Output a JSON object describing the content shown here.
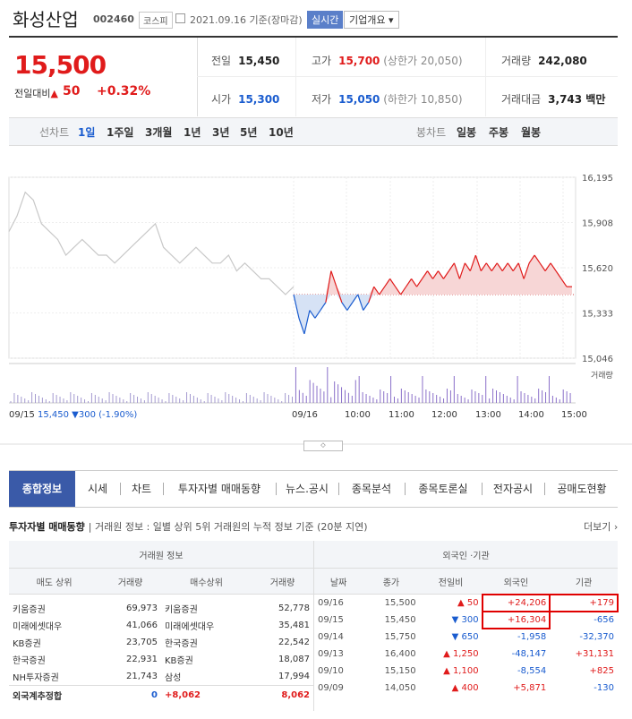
{
  "header": {
    "name": "화성산업",
    "code": "002460",
    "market": "코스피",
    "date": "2021.09.16 기준(장마감)",
    "realtime": "실시간",
    "overview": "기업개요 ▾"
  },
  "price": {
    "current": "15,500",
    "change_label": "전일대비",
    "change_arrow": "▲",
    "change": "50",
    "pct": "+0.32%"
  },
  "stats": {
    "prev_l": "전일",
    "prev": "15,450",
    "high_l": "고가",
    "high": "15,700",
    "high_limit": "(상한가 20,050)",
    "vol_l": "거래량",
    "vol": "242,080",
    "open_l": "시가",
    "open": "15,300",
    "low_l": "저가",
    "low": "15,050",
    "low_limit": "(하한가 10,850)",
    "amt_l": "거래대금",
    "amt": "3,743 백만"
  },
  "period": {
    "line_label": "선차트",
    "line_items": [
      "1일",
      "1주일",
      "3개월",
      "1년",
      "3년",
      "5년",
      "10년"
    ],
    "candle_label": "봉차트",
    "candle_items": [
      "일봉",
      "주봉",
      "월봉"
    ]
  },
  "chart_data": {
    "type": "line",
    "y_ticks": [
      "16,195",
      "15,908",
      "15,620",
      "15,333",
      "15,046"
    ],
    "ylim": [
      15046,
      16195
    ],
    "volume_label": "거래량",
    "x_ticks": [
      "09/16",
      "10:00",
      "11:00",
      "12:00",
      "13:00",
      "14:00",
      "15:00"
    ],
    "prev_label": "09/15",
    "prev_value": "15,450",
    "prev_change": "▼300 (-1.90%)",
    "base": 15450,
    "prev_day": [
      15850,
      15950,
      16100,
      16050,
      15900,
      15850,
      15800,
      15700,
      15750,
      15800,
      15750,
      15700,
      15700,
      15650,
      15700,
      15750,
      15800,
      15850,
      15900,
      15750,
      15700,
      15650,
      15700,
      15750,
      15700,
      15650,
      15650,
      15700,
      15600,
      15650,
      15600,
      15550,
      15550,
      15500,
      15450,
      15500
    ],
    "today": [
      15450,
      15300,
      15200,
      15350,
      15300,
      15350,
      15400,
      15600,
      15500,
      15400,
      15350,
      15400,
      15450,
      15350,
      15400,
      15500,
      15450,
      15500,
      15550,
      15500,
      15450,
      15500,
      15550,
      15500,
      15550,
      15600,
      15550,
      15600,
      15550,
      15600,
      15650,
      15550,
      15650,
      15600,
      15700,
      15600,
      15650,
      15600,
      15650,
      15600,
      15650,
      15600,
      15650,
      15550,
      15650,
      15700,
      15650,
      15600,
      15650,
      15600,
      15550,
      15500,
      15500
    ]
  },
  "tabs": [
    "종합정보",
    "시세",
    "차트",
    "투자자별 매매동향",
    "뉴스.공시",
    "종목분석",
    "종목토론실",
    "전자공시",
    "공매도현황"
  ],
  "section": {
    "title": "투자자별 매매동향",
    "sub": "거래원 정보 : 일별 상위 5위 거래원의 누적 정보 기준 (20분 지연)",
    "more": "더보기 ›"
  },
  "broker": {
    "group": "거래원 정보",
    "cols": [
      "매도 상위",
      "거래량",
      "매수상위",
      "거래량"
    ],
    "rows": [
      [
        "키움증권",
        "69,973",
        "키움증권",
        "52,778"
      ],
      [
        "미래에셋대우",
        "41,066",
        "미래에셋대우",
        "35,481"
      ],
      [
        "KB증권",
        "23,705",
        "한국증권",
        "22,542"
      ],
      [
        "한국증권",
        "22,931",
        "KB증권",
        "18,087"
      ],
      [
        "NH투자증권",
        "21,743",
        "삼성",
        "17,994"
      ]
    ],
    "foot": [
      "외국계추정합",
      "0",
      "+8,062",
      "8,062"
    ]
  },
  "foreign": {
    "group": "외국인 ·기관",
    "cols": [
      "날짜",
      "종가",
      "전일비",
      "외국인",
      "기관"
    ],
    "rows": [
      [
        "09/16",
        "15,500",
        "▲ 50",
        "+24,206",
        "+179"
      ],
      [
        "09/15",
        "15,450",
        "▼ 300",
        "+16,304",
        "-656"
      ],
      [
        "09/14",
        "15,750",
        "▼ 650",
        "-1,958",
        "-32,370"
      ],
      [
        "09/13",
        "16,400",
        "▲ 1,250",
        "-48,147",
        "+31,131"
      ],
      [
        "09/10",
        "15,150",
        "▲ 1,100",
        "-8,554",
        "+825"
      ],
      [
        "09/09",
        "14,050",
        "▲ 400",
        "+5,871",
        "-130"
      ]
    ]
  }
}
